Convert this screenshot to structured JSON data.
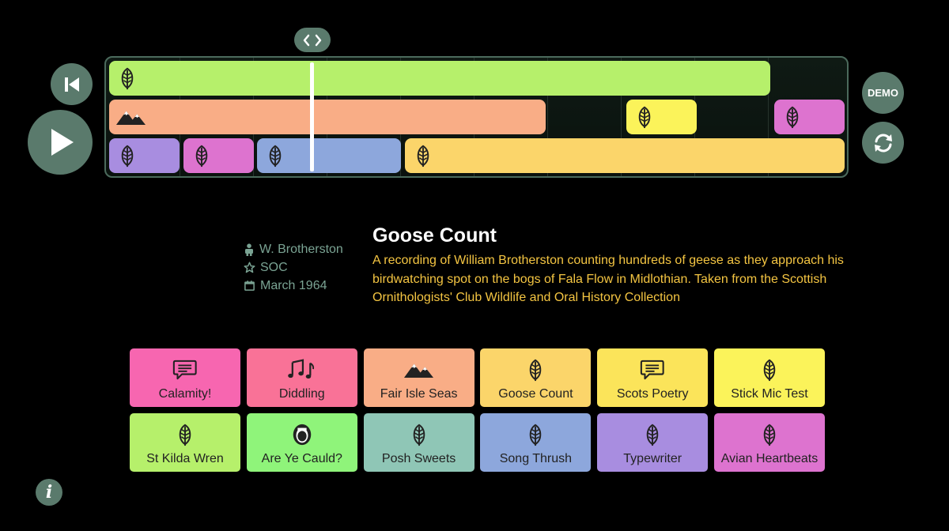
{
  "controls": {
    "demo_label": "DEMO",
    "info_label": "i"
  },
  "timeline": {
    "rows": [
      [
        {
          "color": "#b6f06b",
          "icon": "leaf-icon"
        }
      ],
      [
        {
          "color": "#f9ad86",
          "icon": "mountains-icon"
        },
        {
          "color": "#fbf35a",
          "icon": "leaf-icon"
        },
        {
          "color": "#dd73cf",
          "icon": "leaf-icon"
        }
      ],
      [
        {
          "color": "#a88de0",
          "icon": "leaf-icon"
        },
        {
          "color": "#dd73cf",
          "icon": "leaf-icon"
        },
        {
          "color": "#8da7dc",
          "icon": "leaf-icon"
        },
        {
          "color": "#fbd56a",
          "icon": "leaf-icon"
        }
      ]
    ]
  },
  "selected": {
    "title": "Goose Count",
    "description": "A recording of William Brotherston counting hundreds of geese as they approach his birdwatching spot on the bogs of Fala Flow in Midlothian. Taken from the Scottish Ornithologists' Club Wildlife and Oral History Collection",
    "author": "W. Brotherston",
    "collection": "SOC",
    "date": "March 1964"
  },
  "tiles": [
    {
      "label": "Calamity!",
      "color": "#f766b0",
      "icon": "speech-bubble-icon"
    },
    {
      "label": "Diddling",
      "color": "#f97297",
      "icon": "music-notes-icon"
    },
    {
      "label": "Fair Isle Seas",
      "color": "#f9ad86",
      "icon": "mountains-icon"
    },
    {
      "label": "Goose Count",
      "color": "#fbd56a",
      "icon": "leaf-icon"
    },
    {
      "label": "Scots Poetry",
      "color": "#fbe45a",
      "icon": "speech-bubble-icon"
    },
    {
      "label": "Stick Mic Test",
      "color": "#fbf35a",
      "icon": "leaf-icon"
    },
    {
      "label": "St Kilda Wren",
      "color": "#b6f06b",
      "icon": "leaf-icon"
    },
    {
      "label": "Are Ye Cauld?",
      "color": "#8ff47a",
      "icon": "singing-mouth-icon"
    },
    {
      "label": "Posh Sweets",
      "color": "#8fc6b6",
      "icon": "leaf-icon"
    },
    {
      "label": "Song Thrush",
      "color": "#8da7dc",
      "icon": "leaf-icon"
    },
    {
      "label": "Typewriter",
      "color": "#a88de0",
      "icon": "leaf-icon"
    },
    {
      "label": "Avian Heartbeats",
      "color": "#dd73cf",
      "icon": "leaf-icon"
    }
  ]
}
